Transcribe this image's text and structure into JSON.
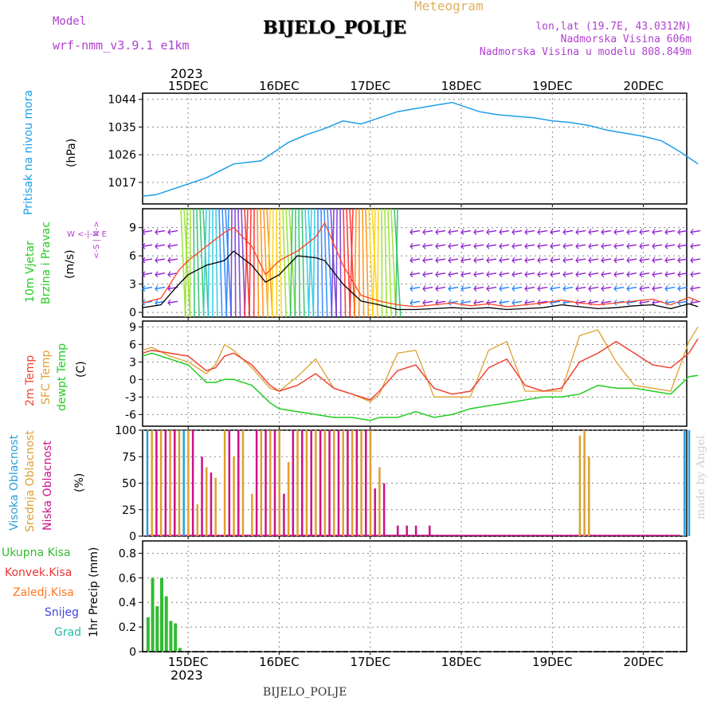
{
  "header": {
    "model_label": "Model",
    "model_name": "wrf-nmm_v3.9.1 e1km",
    "station": "BIJELO_POLJE",
    "meteogram": "Meteogram",
    "lonlat": "lon,lat (19.7E, 43.0312N)",
    "elevation": "Nadmorska Visina 606m",
    "model_elevation": "Nadmorska Visina u modelu 808.849m"
  },
  "footer": {
    "station": "BIJELO_POLJE",
    "year_bottom": "2023",
    "year_top": "2023"
  },
  "watermark": "made by Angel",
  "x_ticks": [
    "15DEC",
    "16DEC",
    "17DEC",
    "18DEC",
    "19DEC",
    "20DEC"
  ],
  "panels": {
    "pressure": {
      "label1": "Pritisak na nivou mora",
      "unit": "(hPa)"
    },
    "wind": {
      "label1": "10m Vjetar",
      "label2": "Brzina i Pravac",
      "unit": "(m/s)",
      "compass_n": "N",
      "compass_s": "S",
      "compass_e": "E",
      "compass_w": "W"
    },
    "temp": {
      "label1": "2m Temp",
      "label2": "SFC Temp",
      "label3": "dewpt Temp",
      "unit": "(C)"
    },
    "cloud": {
      "label1": "Visoka Oblacnost",
      "label2": "Srednja Oblacnost",
      "label3": "Niska Oblacnost",
      "unit": "(%)"
    },
    "precip": {
      "legend": [
        "Ukupna Kisa",
        "Konvek.Kisa",
        "Zaledj.Kisa",
        "Snijeg",
        "Grad"
      ],
      "unit": "1hr Precip (mm)"
    }
  },
  "colors": {
    "pressure": "#1e9ee8",
    "wind_speed": "#000000",
    "wind_gust": "#ff4422",
    "temp2m": "#ee4433",
    "sfc": "#dda030",
    "dewpt": "#22cc22",
    "cloud_high": "#2a9fd8",
    "cloud_mid": "#dda030",
    "cloud_low": "#cc1188",
    "rain": "#33bb33",
    "conv": "#ee3333",
    "frz": "#ff7722",
    "snow": "#4444dd",
    "hail": "#22bbaa"
  },
  "chart_data": [
    {
      "type": "line",
      "title": "Pritisak na nivou mora",
      "ylabel": "(hPa)",
      "yticks": [
        1017,
        1026,
        1035,
        1044
      ],
      "ylim": [
        1010,
        1046
      ],
      "x_unit": "days from 14DEC 12UTC",
      "series": [
        {
          "x": [
            0,
            0.15,
            0.3,
            0.5,
            0.7,
            0.9,
            1.0,
            1.15,
            1.3,
            1.45,
            1.6,
            1.8,
            2.0,
            2.2,
            2.4,
            2.6,
            2.8,
            3.0,
            3.2,
            3.4,
            3.5,
            3.7,
            3.9,
            4.1,
            4.3,
            4.5,
            4.7,
            4.9,
            5.1,
            5.3,
            5.5,
            5.7,
            5.9,
            6.1
          ],
          "values": [
            1012.5,
            1013,
            1014.5,
            1016.5,
            1018.5,
            1021.5,
            1023,
            1023.5,
            1024,
            1027,
            1030,
            1032.5,
            1034.5,
            1037,
            1036,
            1038,
            1040,
            1041,
            1042,
            1043,
            1042,
            1040,
            1039,
            1038.5,
            1038,
            1037,
            1036.5,
            1035.5,
            1034,
            1033,
            1032,
            1030.5,
            1027,
            1023
          ]
        }
      ]
    },
    {
      "type": "line",
      "title": "10m Vjetar Brzina i Pravac",
      "ylabel": "(m/s)",
      "yticks": [
        0,
        3,
        6,
        9
      ],
      "ylim": [
        -0.5,
        11
      ],
      "series": [
        {
          "name": "speed",
          "x": [
            0,
            0.2,
            0.4,
            0.5,
            0.7,
            0.9,
            1.0,
            1.2,
            1.35,
            1.5,
            1.7,
            1.9,
            2.0,
            2.2,
            2.4,
            2.6,
            2.8,
            3.0,
            3.2,
            3.4,
            3.6,
            3.8,
            4.0,
            4.2,
            4.4,
            4.6,
            4.8,
            5.0,
            5.2,
            5.4,
            5.6,
            5.8,
            6.0,
            6.1
          ],
          "values": [
            0.5,
            0.8,
            3.0,
            4.0,
            5.0,
            5.5,
            6.5,
            5.0,
            3.2,
            4.0,
            6.0,
            5.8,
            5.5,
            3.0,
            1.2,
            0.8,
            0.3,
            0.3,
            0.4,
            0.5,
            0.4,
            0.5,
            0.3,
            0.4,
            0.5,
            0.8,
            0.6,
            0.4,
            0.5,
            0.7,
            0.8,
            0.4,
            0.9,
            0.6
          ]
        },
        {
          "name": "gust",
          "x": [
            0,
            0.2,
            0.4,
            0.5,
            0.7,
            0.9,
            1.0,
            1.2,
            1.35,
            1.5,
            1.7,
            1.9,
            2.0,
            2.2,
            2.4,
            2.6,
            2.8,
            3.0,
            3.2,
            3.4,
            3.6,
            3.8,
            4.0,
            4.2,
            4.4,
            4.6,
            4.8,
            5.0,
            5.2,
            5.4,
            5.6,
            5.8,
            6.0,
            6.1
          ],
          "values": [
            1.0,
            1.5,
            4.5,
            5.5,
            7.0,
            8.5,
            9.0,
            7.0,
            4.0,
            5.5,
            6.5,
            8.0,
            9.5,
            5.0,
            1.8,
            1.2,
            0.8,
            0.6,
            0.8,
            1.0,
            0.7,
            0.9,
            0.6,
            0.8,
            1.0,
            1.3,
            1.0,
            0.8,
            1.0,
            1.2,
            1.4,
            0.8,
            1.6,
            1.2
          ]
        }
      ]
    },
    {
      "type": "line",
      "title": "2m Temp / SFC Temp / dewpt Temp",
      "ylabel": "(C)",
      "yticks": [
        -6,
        -3,
        0,
        3,
        6,
        9
      ],
      "ylim": [
        -8,
        10
      ],
      "series": [
        {
          "name": "2m Temp",
          "x": [
            0,
            0.1,
            0.3,
            0.5,
            0.7,
            0.8,
            0.9,
            1.0,
            1.2,
            1.4,
            1.5,
            1.7,
            1.9,
            2.1,
            2.3,
            2.5,
            2.6,
            2.8,
            3.0,
            3.2,
            3.4,
            3.6,
            3.8,
            4.0,
            4.2,
            4.4,
            4.6,
            4.8,
            5.0,
            5.2,
            5.4,
            5.6,
            5.8,
            6.0,
            6.1
          ],
          "values": [
            4.5,
            5.0,
            4.5,
            4.0,
            1.5,
            2.0,
            4.0,
            4.5,
            2.5,
            -1.0,
            -2.0,
            -1.0,
            1.0,
            -1.5,
            -2.5,
            -3.5,
            -2.0,
            1.5,
            2.5,
            -1.5,
            -2.5,
            -2.0,
            2.0,
            3.5,
            -1.0,
            -2.0,
            -1.5,
            3.0,
            4.5,
            6.5,
            4.5,
            2.5,
            2.0,
            4.5,
            7.0
          ]
        },
        {
          "name": "SFC Temp",
          "x": [
            0,
            0.1,
            0.3,
            0.5,
            0.7,
            0.8,
            0.9,
            1.0,
            1.2,
            1.4,
            1.5,
            1.7,
            1.9,
            2.1,
            2.3,
            2.5,
            2.6,
            2.8,
            3.0,
            3.2,
            3.4,
            3.6,
            3.8,
            4.0,
            4.2,
            4.4,
            4.6,
            4.8,
            5.0,
            5.2,
            5.4,
            5.6,
            5.8,
            6.0,
            6.1
          ],
          "values": [
            5.0,
            5.5,
            4.0,
            3.0,
            1.0,
            2.5,
            6.0,
            5.0,
            2.0,
            -1.5,
            -2.0,
            0.5,
            3.5,
            -1.5,
            -2.5,
            -3.8,
            -2.5,
            4.5,
            5.0,
            -3.0,
            -3.0,
            -3.0,
            5.0,
            6.5,
            -2.0,
            -2.0,
            -2.0,
            7.5,
            8.5,
            3.0,
            -1.0,
            -1.5,
            -2.0,
            6.5,
            9.0
          ]
        },
        {
          "name": "dewpt Temp",
          "x": [
            0,
            0.1,
            0.3,
            0.5,
            0.7,
            0.8,
            0.9,
            1.0,
            1.2,
            1.4,
            1.5,
            1.7,
            1.9,
            2.1,
            2.3,
            2.5,
            2.6,
            2.8,
            3.0,
            3.2,
            3.4,
            3.6,
            3.8,
            4.0,
            4.2,
            4.4,
            4.6,
            4.8,
            5.0,
            5.2,
            5.4,
            5.6,
            5.8,
            6.0,
            6.1
          ],
          "values": [
            4.0,
            4.5,
            3.5,
            2.5,
            -0.5,
            -0.5,
            0.0,
            0.0,
            -1.0,
            -4.0,
            -5.0,
            -5.5,
            -6.0,
            -6.5,
            -6.5,
            -7.0,
            -6.5,
            -6.5,
            -5.5,
            -6.5,
            -6.0,
            -5.0,
            -4.5,
            -4.0,
            -3.5,
            -3.0,
            -3.0,
            -2.5,
            -1.0,
            -1.5,
            -1.5,
            -2.0,
            -2.5,
            0.5,
            0.7
          ]
        }
      ]
    },
    {
      "type": "bar",
      "title": "Oblacnost",
      "ylabel": "(%)",
      "yticks": [
        0,
        25,
        50,
        75,
        100
      ],
      "ylim": [
        0,
        100
      ],
      "series": [
        {
          "name": "Visoka Oblacnost",
          "x": [
            0.05,
            0.45,
            5.95,
            6.0
          ],
          "values": [
            100,
            100,
            100,
            100
          ]
        },
        {
          "name": "Srednja Oblacnost",
          "x": [
            0.1,
            0.2,
            0.3,
            0.4,
            0.5,
            0.6,
            0.7,
            0.8,
            0.9,
            1.0,
            1.1,
            1.2,
            1.3,
            1.4,
            1.5,
            1.6,
            1.7,
            1.8,
            1.9,
            2.0,
            2.1,
            2.2,
            2.3,
            2.4,
            2.5,
            2.6,
            4.8,
            4.85,
            4.9
          ],
          "values": [
            100,
            100,
            100,
            100,
            100,
            30,
            65,
            55,
            100,
            75,
            100,
            40,
            100,
            100,
            100,
            70,
            100,
            100,
            100,
            100,
            100,
            100,
            100,
            100,
            100,
            65,
            95,
            100,
            75
          ]
        },
        {
          "name": "Niska Oblacnost",
          "x": [
            0.15,
            0.25,
            0.35,
            0.55,
            0.65,
            0.75,
            0.95,
            1.05,
            1.25,
            1.35,
            1.45,
            1.55,
            1.65,
            1.75,
            1.85,
            1.95,
            2.05,
            2.15,
            2.25,
            2.35,
            2.45,
            2.55,
            2.65,
            2.8,
            2.9,
            3.0,
            3.15
          ],
          "values": [
            100,
            100,
            100,
            100,
            75,
            60,
            100,
            100,
            100,
            100,
            100,
            40,
            100,
            100,
            100,
            100,
            100,
            100,
            100,
            100,
            100,
            45,
            50,
            10,
            10,
            10,
            10
          ]
        }
      ]
    },
    {
      "type": "bar",
      "title": "1hr Precip",
      "ylabel": "1hr Precip (mm)",
      "yticks": [
        0,
        0.2,
        0.4,
        0.6,
        0.8
      ],
      "ylim": [
        0,
        0.9
      ],
      "series": [
        {
          "name": "Ukupna Kisa",
          "x": [
            0.06,
            0.11,
            0.16,
            0.21,
            0.26,
            0.31,
            0.36,
            0.41,
            0.46
          ],
          "values": [
            0.28,
            0.6,
            0.37,
            0.6,
            0.45,
            0.25,
            0.23,
            0.03,
            0.0
          ]
        }
      ]
    }
  ]
}
